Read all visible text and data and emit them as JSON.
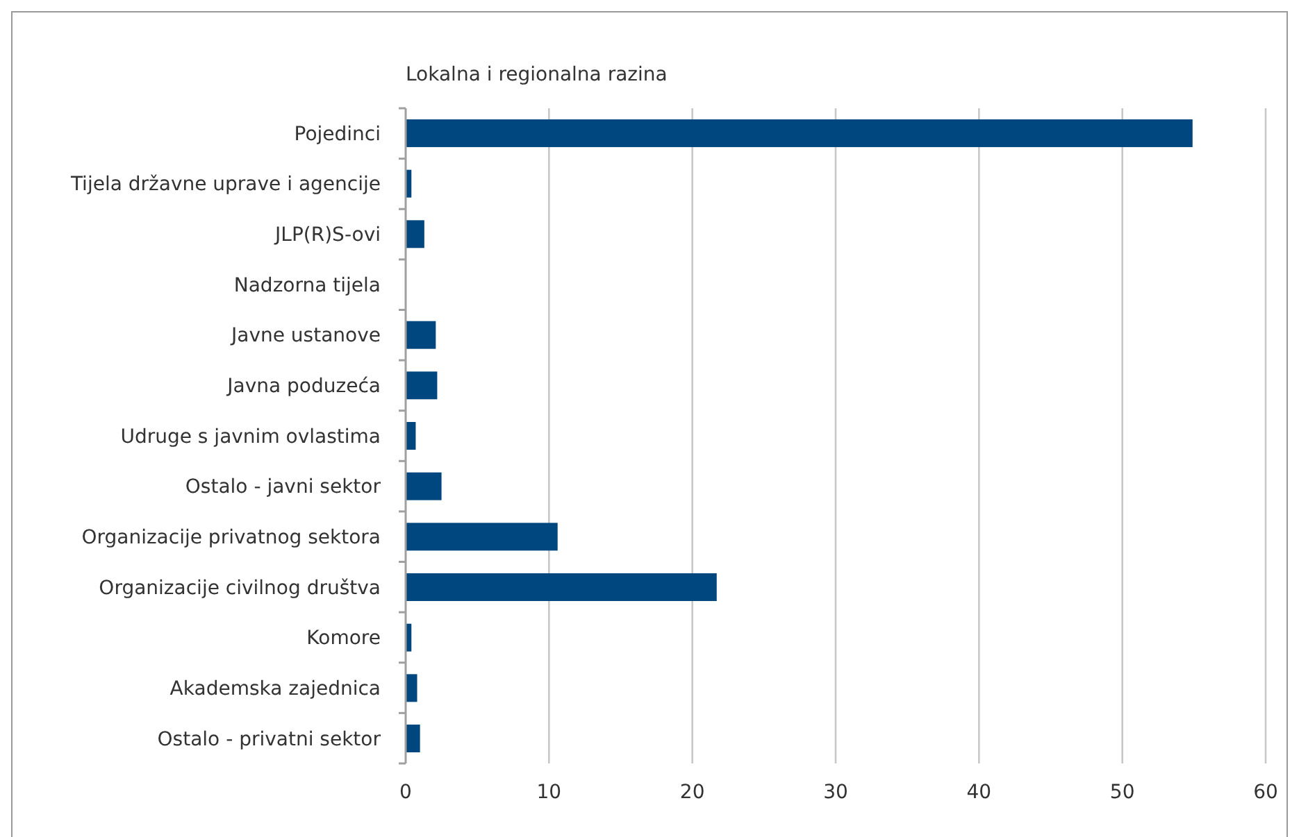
{
  "chart_data": {
    "type": "bar",
    "orientation": "horizontal",
    "title": "Lokalna i regionalna razina",
    "categories": [
      "Pojedinci",
      "Tijela državne uprave i agencije",
      "JLP(R)S-ovi",
      "Nadzorna tijela",
      "Javne ustanove",
      "Javna poduzeća",
      "Udruge s javnim ovlastima",
      "Ostalo - javni sektor",
      "Organizacije privatnog sektora",
      "Organizacije civilnog društva",
      "Komore",
      "Akademska zajednica",
      "Ostalo - privatni sektor"
    ],
    "values": [
      54.9,
      0.4,
      1.3,
      0,
      2.1,
      2.2,
      0.7,
      2.5,
      10.6,
      21.7,
      0.4,
      0.8,
      1.0
    ],
    "color": "#00467f",
    "xlim": [
      0,
      60
    ],
    "xticks": [
      0,
      10,
      20,
      30,
      40,
      50,
      60
    ],
    "grid": "x"
  }
}
